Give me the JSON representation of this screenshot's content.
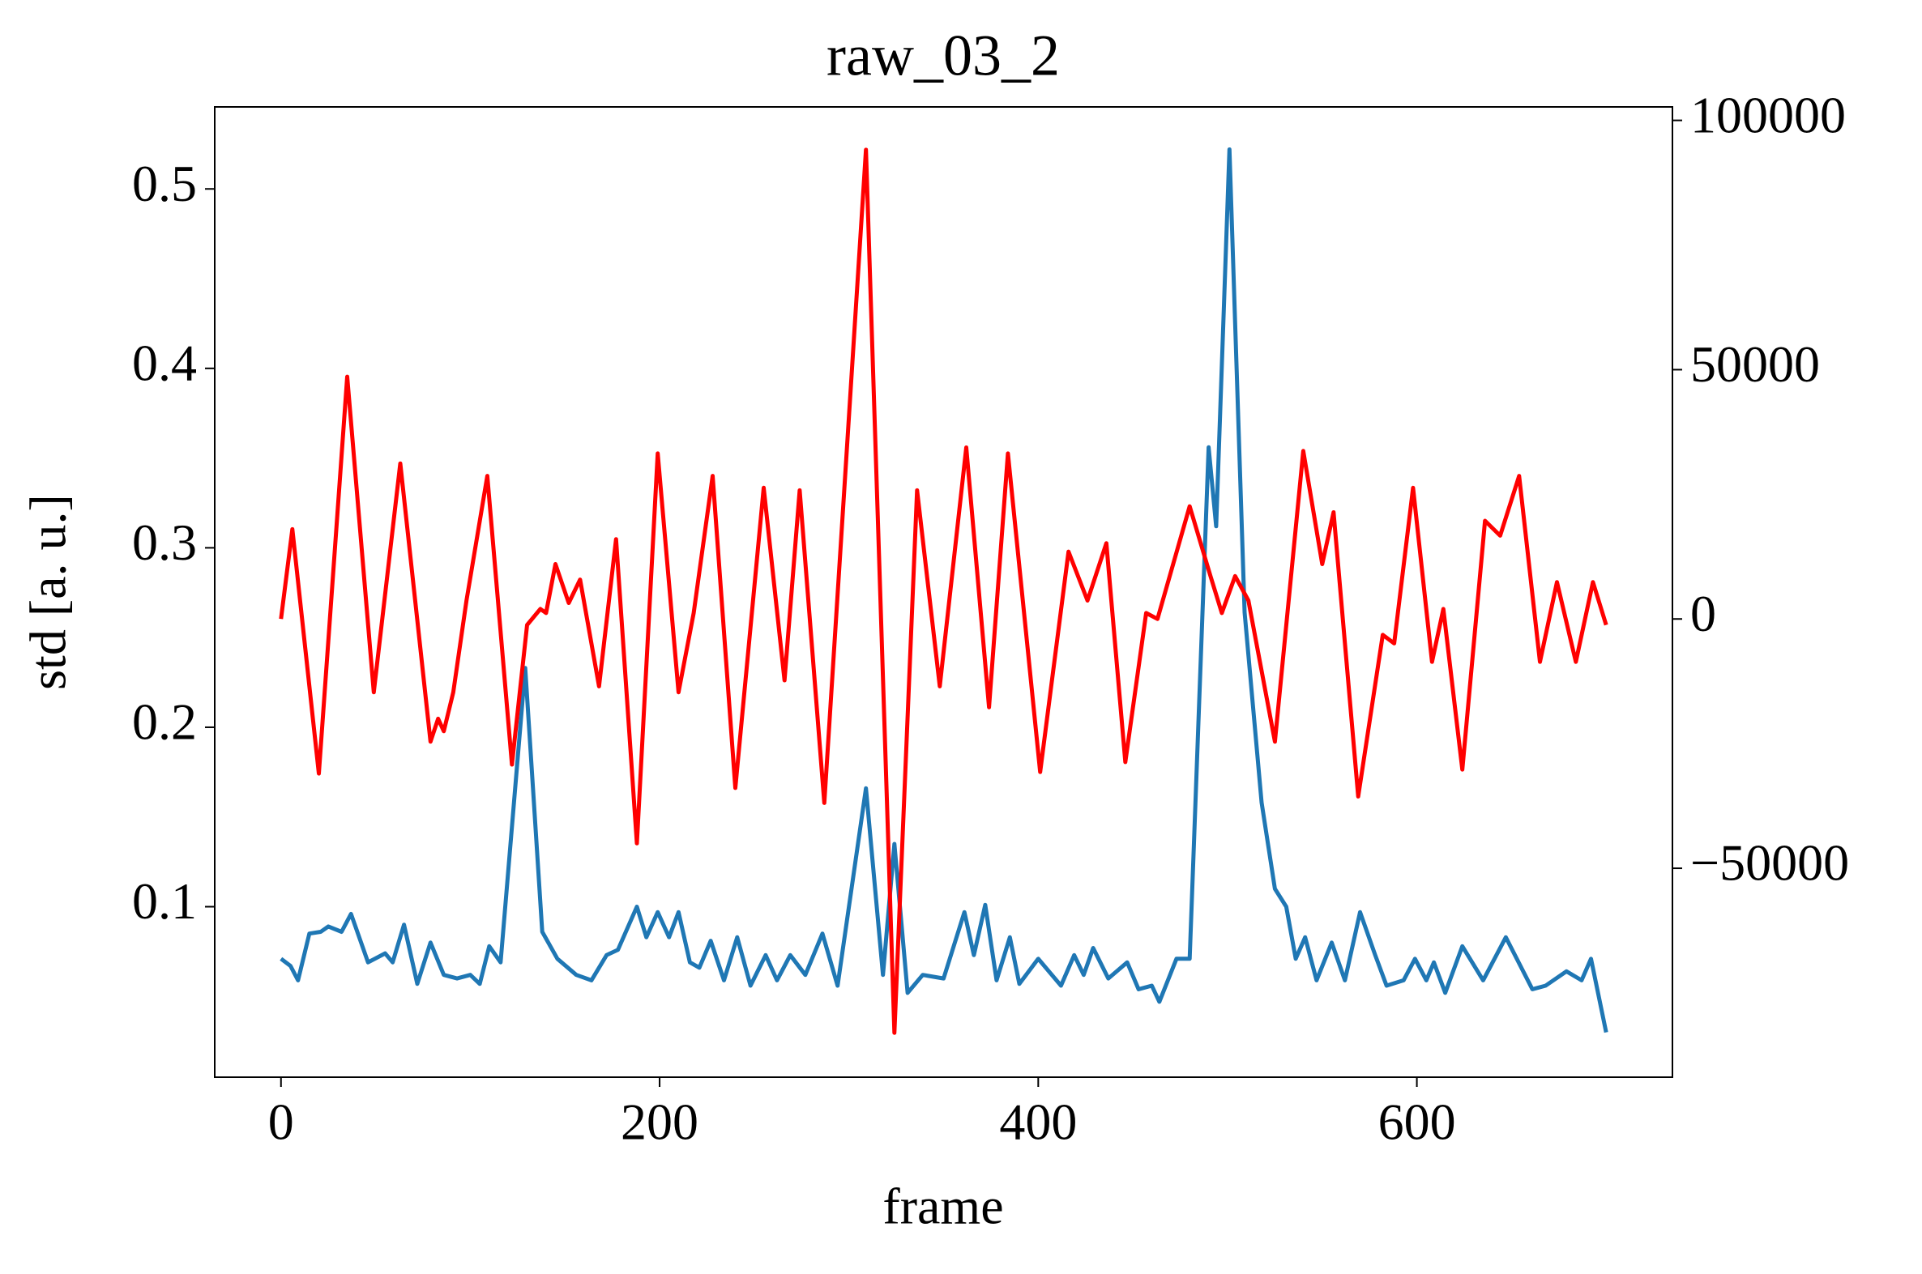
{
  "chart_data": {
    "type": "line",
    "title": "raw_03_2",
    "x_label": "frame",
    "y_label": "std [a. u.]",
    "xlim": [
      -35,
      735
    ],
    "xticks": [
      0,
      200,
      400,
      600
    ],
    "ylim": [
      0.005,
      0.5457
    ],
    "yticks": [
      0.1,
      0.2,
      0.3,
      0.4,
      0.5
    ],
    "y2lim": [
      -91900,
      102700
    ],
    "y2ticks": [
      {
        "value": -50000,
        "label": "−50000"
      },
      0,
      50000,
      100000
    ],
    "series": [
      {
        "color": "#1f77b4",
        "x": [
          0,
          5,
          9,
          15,
          21,
          25,
          32,
          37,
          46,
          55,
          59,
          65,
          72,
          79,
          86,
          93,
          100,
          105,
          110,
          116,
          129,
          138,
          146,
          156,
          164,
          172,
          178,
          188,
          193,
          199,
          205,
          210,
          216,
          221,
          227,
          234,
          241,
          248,
          256,
          262,
          269,
          277,
          286,
          294,
          309,
          318,
          324,
          331,
          339,
          350,
          361,
          366,
          372,
          378,
          385,
          390,
          400,
          412,
          419,
          424,
          429,
          437,
          447,
          453,
          460,
          464,
          473,
          480,
          490,
          494,
          501,
          509,
          518,
          525,
          531,
          536,
          541,
          547,
          555,
          562,
          570,
          578,
          584,
          593,
          599,
          605,
          609,
          615,
          624,
          635,
          647,
          661,
          668,
          679,
          687,
          692,
          700
        ],
        "values": [
          0.071,
          0.067,
          0.059,
          0.085,
          0.086,
          0.089,
          0.086,
          0.096,
          0.069,
          0.074,
          0.069,
          0.09,
          0.057,
          0.08,
          0.062,
          0.06,
          0.062,
          0.057,
          0.078,
          0.069,
          0.233,
          0.086,
          0.071,
          0.062,
          0.059,
          0.073,
          0.076,
          0.1,
          0.083,
          0.097,
          0.083,
          0.097,
          0.069,
          0.066,
          0.081,
          0.059,
          0.083,
          0.056,
          0.073,
          0.059,
          0.073,
          0.062,
          0.085,
          0.056,
          0.166,
          0.062,
          0.135,
          0.052,
          0.062,
          0.06,
          0.097,
          0.073,
          0.101,
          0.059,
          0.083,
          0.057,
          0.071,
          0.056,
          0.073,
          0.062,
          0.077,
          0.06,
          0.069,
          0.054,
          0.056,
          0.047,
          0.071,
          0.071,
          0.356,
          0.312,
          0.522,
          0.264,
          0.158,
          0.11,
          0.1,
          0.071,
          0.083,
          0.059,
          0.08,
          0.059,
          0.097,
          0.073,
          0.056,
          0.059,
          0.071,
          0.059,
          0.069,
          0.052,
          0.078,
          0.059,
          0.083,
          0.054,
          0.056,
          0.064,
          0.059,
          0.071,
          0.03
        ]
      },
      {
        "color": "#ff0000",
        "axis": "y2",
        "x": [
          0,
          6,
          20,
          35,
          49,
          63,
          79,
          83,
          86,
          91,
          98,
          109,
          122,
          130,
          137,
          140,
          145,
          152,
          158,
          168,
          177,
          188,
          199,
          210,
          218,
          228,
          240,
          255,
          266,
          274,
          287,
          309,
          324,
          336,
          348,
          362,
          374,
          384,
          401,
          416,
          426,
          436,
          446,
          457,
          463,
          480,
          491,
          497,
          504,
          511,
          525,
          540,
          550,
          556,
          569,
          582,
          588,
          598,
          608,
          614,
          624,
          636,
          644,
          654,
          665,
          674,
          684,
          693,
          700
        ],
        "values": [
          0,
          18000,
          -31000,
          48600,
          -14700,
          31200,
          -24600,
          -20000,
          -22500,
          -14700,
          3700,
          28700,
          -29200,
          -1200,
          2000,
          1200,
          11000,
          3200,
          7900,
          -13500,
          16000,
          -45000,
          33200,
          -14700,
          1200,
          28700,
          -33900,
          26300,
          -12300,
          25800,
          -36900,
          94100,
          -83000,
          25800,
          -13500,
          34400,
          -17700,
          33200,
          -30700,
          13500,
          3700,
          15200,
          -28700,
          1200,
          0,
          22600,
          8600,
          1200,
          8600,
          3700,
          -24600,
          33700,
          11000,
          21400,
          -35600,
          -3200,
          -4900,
          26300,
          -8600,
          2000,
          -30200,
          19700,
          16700,
          28700,
          -8600,
          7400,
          -8600,
          7400,
          -1200
        ]
      }
    ]
  }
}
